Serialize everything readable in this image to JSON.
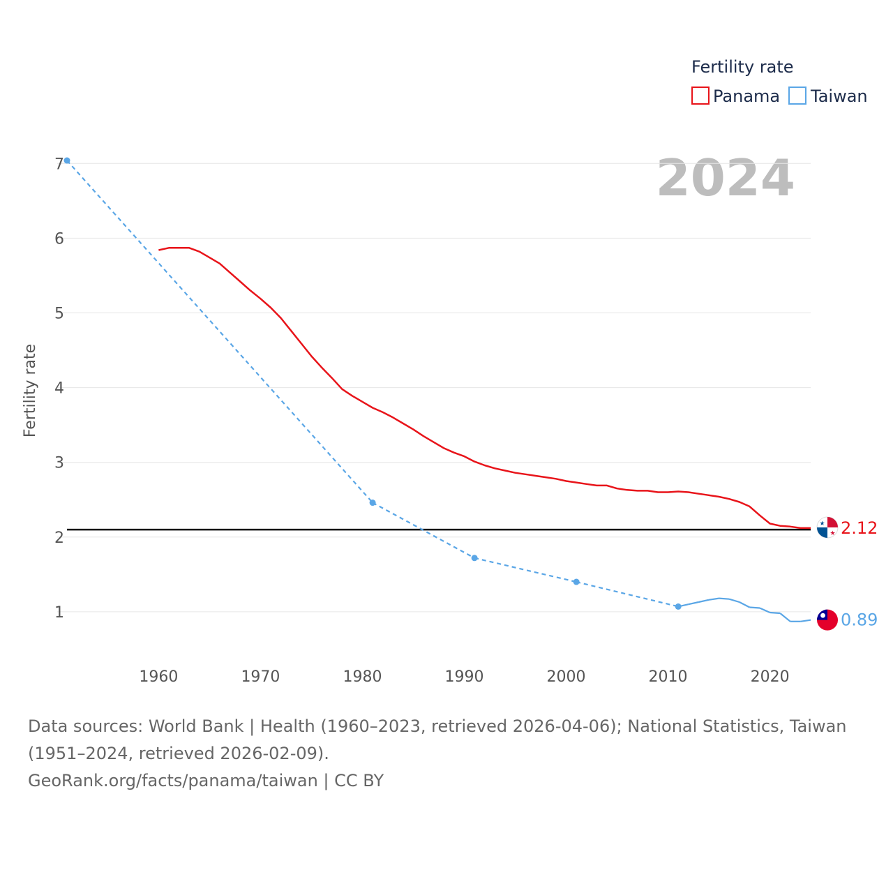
{
  "chart_data": {
    "type": "line",
    "legend_title": "Fertility rate",
    "ylabel": "Fertility rate",
    "year_label": "2024",
    "xlim": [
      1951,
      2024
    ],
    "ylim": [
      0,
      7.2
    ],
    "x_ticks": [
      1960,
      1970,
      1980,
      1990,
      2000,
      2010,
      2020
    ],
    "y_ticks": [
      1,
      2,
      3,
      4,
      5,
      6,
      7
    ],
    "reference_line": 2.1,
    "series": [
      {
        "name": "Panama",
        "color": "#e8141a",
        "style": "solid",
        "end_label": "2.12",
        "flag": "panama-flag",
        "points": [
          [
            1960,
            5.84
          ],
          [
            1961,
            5.87
          ],
          [
            1962,
            5.87
          ],
          [
            1963,
            5.87
          ],
          [
            1964,
            5.82
          ],
          [
            1965,
            5.74
          ],
          [
            1966,
            5.66
          ],
          [
            1967,
            5.54
          ],
          [
            1968,
            5.42
          ],
          [
            1969,
            5.3
          ],
          [
            1970,
            5.19
          ],
          [
            1971,
            5.07
          ],
          [
            1972,
            4.93
          ],
          [
            1973,
            4.76
          ],
          [
            1974,
            4.59
          ],
          [
            1975,
            4.42
          ],
          [
            1976,
            4.27
          ],
          [
            1977,
            4.13
          ],
          [
            1978,
            3.98
          ],
          [
            1979,
            3.89
          ],
          [
            1980,
            3.81
          ],
          [
            1981,
            3.73
          ],
          [
            1982,
            3.67
          ],
          [
            1983,
            3.6
          ],
          [
            1984,
            3.52
          ],
          [
            1985,
            3.44
          ],
          [
            1986,
            3.35
          ],
          [
            1987,
            3.27
          ],
          [
            1988,
            3.19
          ],
          [
            1989,
            3.13
          ],
          [
            1990,
            3.08
          ],
          [
            1991,
            3.01
          ],
          [
            1992,
            2.96
          ],
          [
            1993,
            2.92
          ],
          [
            1994,
            2.89
          ],
          [
            1995,
            2.86
          ],
          [
            1996,
            2.84
          ],
          [
            1997,
            2.82
          ],
          [
            1998,
            2.8
          ],
          [
            1999,
            2.78
          ],
          [
            2000,
            2.75
          ],
          [
            2001,
            2.73
          ],
          [
            2002,
            2.71
          ],
          [
            2003,
            2.69
          ],
          [
            2004,
            2.69
          ],
          [
            2005,
            2.65
          ],
          [
            2006,
            2.63
          ],
          [
            2007,
            2.62
          ],
          [
            2008,
            2.62
          ],
          [
            2009,
            2.6
          ],
          [
            2010,
            2.6
          ],
          [
            2011,
            2.61
          ],
          [
            2012,
            2.6
          ],
          [
            2013,
            2.58
          ],
          [
            2014,
            2.56
          ],
          [
            2015,
            2.54
          ],
          [
            2016,
            2.51
          ],
          [
            2017,
            2.47
          ],
          [
            2018,
            2.41
          ],
          [
            2019,
            2.29
          ],
          [
            2020,
            2.18
          ],
          [
            2021,
            2.15
          ],
          [
            2022,
            2.14
          ],
          [
            2023,
            2.12
          ],
          [
            2024,
            2.12
          ]
        ]
      },
      {
        "name": "Taiwan",
        "color": "#5aa6e6",
        "style": "dashed-sparse",
        "end_label": "0.89",
        "flag": "taiwan-flag",
        "markers": [
          [
            1951,
            7.04
          ],
          [
            1981,
            2.46
          ],
          [
            1991,
            1.72
          ],
          [
            2001,
            1.4
          ],
          [
            2011,
            1.07
          ]
        ],
        "points": [
          [
            1951,
            7.04
          ],
          [
            1981,
            2.46
          ],
          [
            1991,
            1.72
          ],
          [
            2001,
            1.4
          ],
          [
            2011,
            1.07
          ],
          [
            2012,
            1.1
          ],
          [
            2013,
            1.13
          ],
          [
            2014,
            1.16
          ],
          [
            2015,
            1.18
          ],
          [
            2016,
            1.17
          ],
          [
            2017,
            1.13
          ],
          [
            2018,
            1.06
          ],
          [
            2019,
            1.05
          ],
          [
            2020,
            0.99
          ],
          [
            2021,
            0.98
          ],
          [
            2022,
            0.87
          ],
          [
            2023,
            0.87
          ],
          [
            2024,
            0.89
          ]
        ]
      }
    ]
  },
  "legend": {
    "title": "Fertility rate",
    "items": [
      "Panama",
      "Taiwan"
    ]
  },
  "footer": {
    "sources": "Data sources: World Bank | Health (1960–2023, retrieved 2026-04-06); National Statistics, Taiwan (1951–2024, retrieved 2026-02-09).",
    "credit": "GeoRank.org/facts/panama/taiwan | CC BY"
  }
}
